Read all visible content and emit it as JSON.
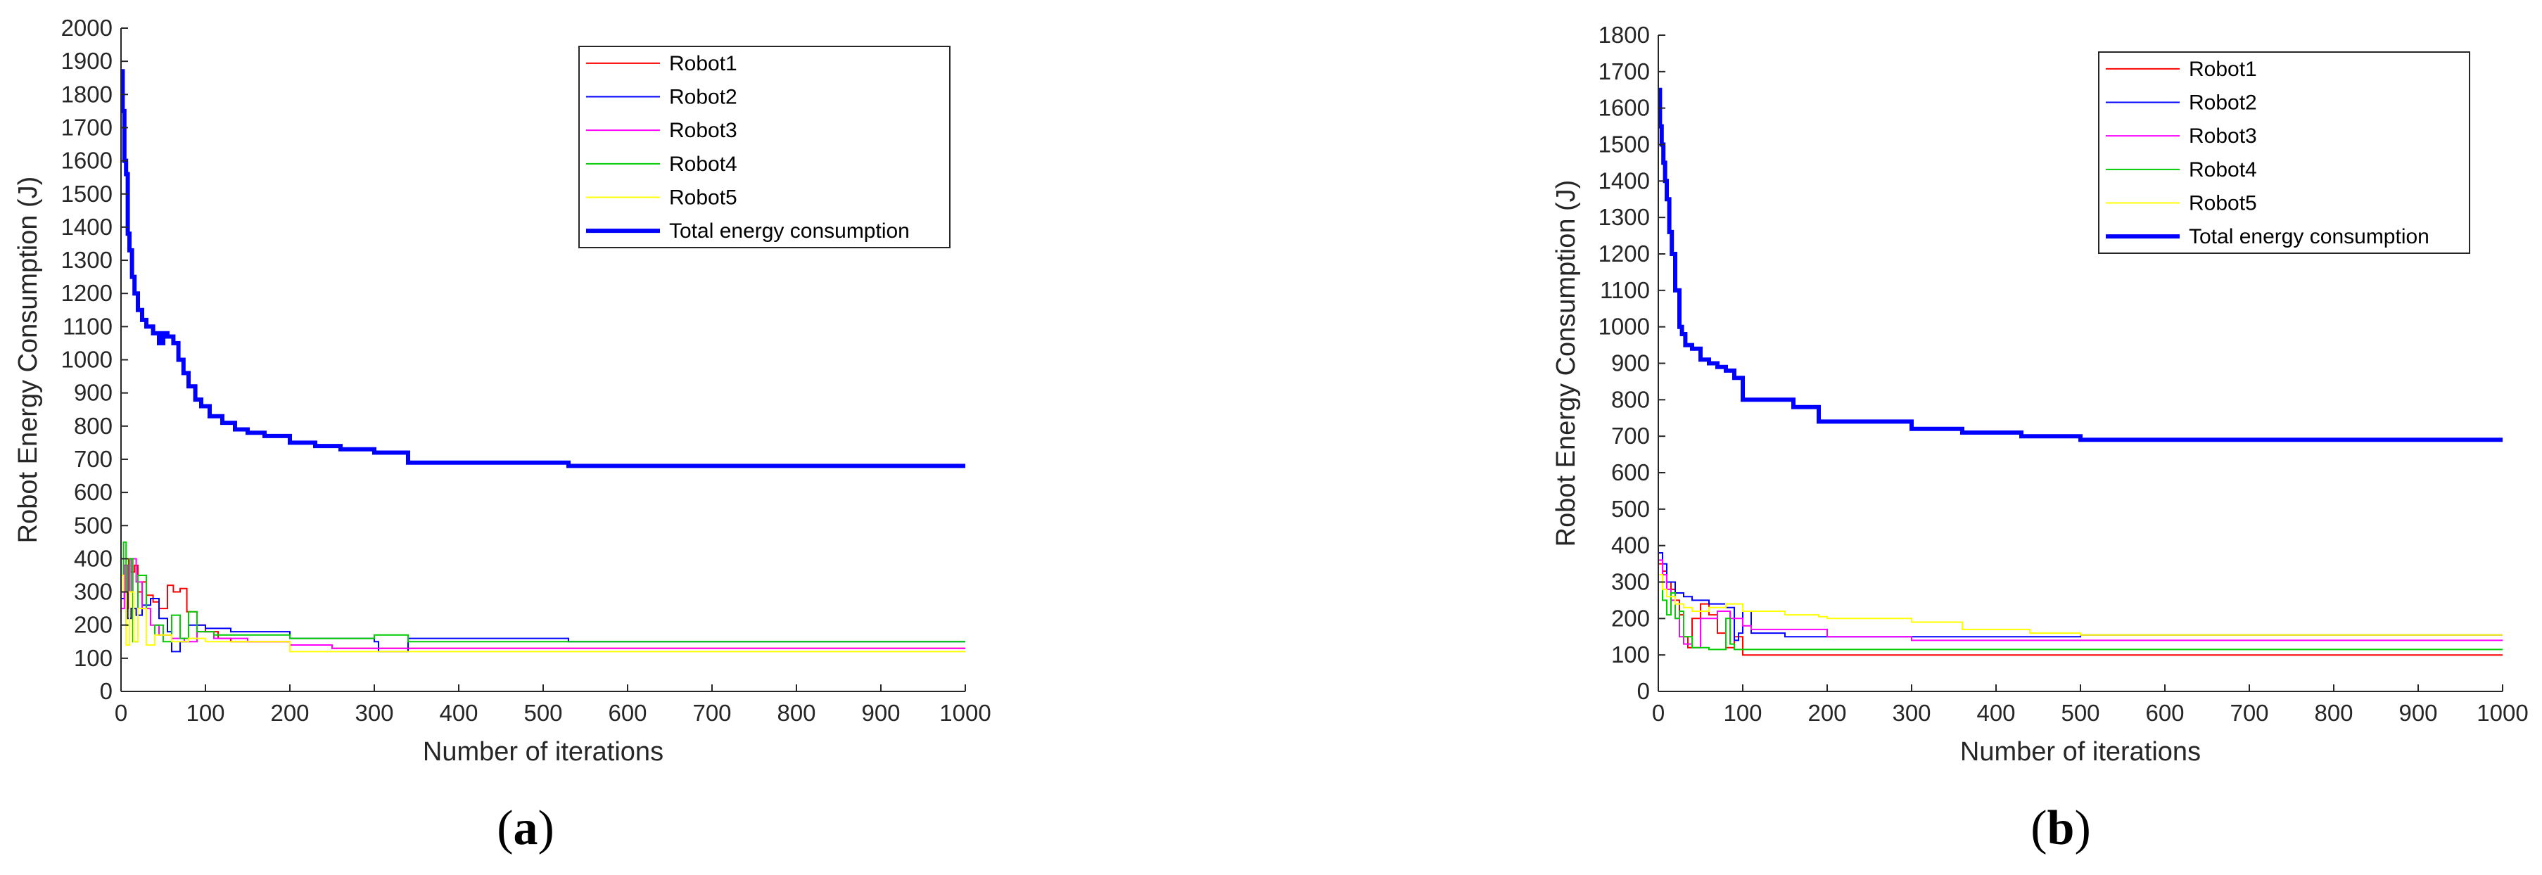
{
  "colors": {
    "robot1": "#ff0000",
    "robot2": "#0000ff",
    "robot3": "#ff00ff",
    "robot4": "#00cc00",
    "robot5": "#ffff00",
    "total": "#0000ff"
  },
  "chart_data": [
    {
      "type": "line",
      "panel_label": {
        "open": "(",
        "letter": "a",
        "close": ")"
      },
      "xlabel": "Number of iterations",
      "ylabel": "Robot Energy Consumption (J)",
      "xlim": [
        0,
        1000
      ],
      "ylim": [
        0,
        2000
      ],
      "xticks": [
        0,
        100,
        200,
        300,
        400,
        500,
        600,
        700,
        800,
        900,
        1000
      ],
      "yticks": [
        0,
        100,
        200,
        300,
        400,
        500,
        600,
        700,
        800,
        900,
        1000,
        1100,
        1200,
        1300,
        1400,
        1500,
        1600,
        1700,
        1800,
        1900,
        2000
      ],
      "grid": false,
      "legend_position": "top-right",
      "series": [
        {
          "name": "Robot1",
          "color_key": "robot1",
          "width": 2,
          "x": [
            0,
            3,
            6,
            9,
            12,
            16,
            20,
            25,
            30,
            38,
            45,
            55,
            62,
            70,
            78,
            90,
            100,
            115,
            130,
            200,
            250,
            300,
            330,
            530,
            1000
          ],
          "y": [
            300,
            380,
            250,
            400,
            360,
            380,
            300,
            330,
            290,
            270,
            250,
            320,
            300,
            310,
            240,
            200,
            180,
            160,
            150,
            140,
            130,
            130,
            130,
            130,
            130
          ]
        },
        {
          "name": "Robot2",
          "color_key": "robot2",
          "width": 2,
          "x": [
            0,
            4,
            8,
            12,
            18,
            25,
            35,
            45,
            55,
            60,
            70,
            80,
            100,
            130,
            200,
            300,
            305,
            340,
            530,
            1000
          ],
          "y": [
            280,
            300,
            220,
            250,
            230,
            260,
            280,
            220,
            180,
            120,
            150,
            200,
            190,
            180,
            160,
            150,
            120,
            160,
            150,
            150
          ]
        },
        {
          "name": "Robot3",
          "color_key": "robot3",
          "width": 2,
          "x": [
            0,
            4,
            8,
            12,
            18,
            25,
            35,
            45,
            60,
            75,
            90,
            110,
            150,
            200,
            250,
            340,
            530,
            1000
          ],
          "y": [
            250,
            380,
            300,
            400,
            330,
            250,
            200,
            170,
            160,
            150,
            180,
            160,
            150,
            140,
            130,
            130,
            130,
            130
          ]
        },
        {
          "name": "Robot4",
          "color_key": "robot4",
          "width": 2,
          "x": [
            0,
            3,
            6,
            10,
            14,
            20,
            30,
            40,
            50,
            60,
            70,
            80,
            90,
            110,
            150,
            200,
            250,
            300,
            340,
            530,
            1000
          ],
          "y": [
            300,
            450,
            200,
            400,
            150,
            350,
            140,
            200,
            150,
            230,
            160,
            240,
            180,
            170,
            170,
            160,
            160,
            170,
            150,
            150,
            150
          ]
        },
        {
          "name": "Robot5",
          "color_key": "robot5",
          "width": 2,
          "x": [
            0,
            3,
            6,
            10,
            15,
            20,
            30,
            40,
            60,
            80,
            100,
            150,
            195,
            200,
            300,
            1000
          ],
          "y": [
            350,
            300,
            140,
            300,
            150,
            250,
            140,
            170,
            150,
            160,
            150,
            150,
            150,
            120,
            120,
            120
          ]
        },
        {
          "name": "Total energy consumption",
          "color_key": "total",
          "width": 6,
          "x": [
            0,
            2,
            4,
            6,
            8,
            10,
            13,
            16,
            20,
            25,
            30,
            38,
            45,
            50,
            55,
            62,
            68,
            74,
            80,
            88,
            95,
            105,
            120,
            135,
            150,
            170,
            200,
            230,
            260,
            300,
            340,
            530,
            1000
          ],
          "y": [
            1870,
            1750,
            1600,
            1560,
            1380,
            1330,
            1250,
            1200,
            1150,
            1120,
            1100,
            1080,
            1050,
            1080,
            1070,
            1050,
            1000,
            960,
            920,
            880,
            860,
            830,
            810,
            790,
            780,
            770,
            750,
            740,
            730,
            720,
            690,
            680,
            680
          ]
        }
      ]
    },
    {
      "type": "line",
      "panel_label": {
        "open": "(",
        "letter": "b",
        "close": ")"
      },
      "xlabel": "Number of iterations",
      "ylabel": "Robot Energy Consumption (J)",
      "xlim": [
        0,
        1000
      ],
      "ylim": [
        0,
        1800
      ],
      "xticks": [
        0,
        100,
        200,
        300,
        400,
        500,
        600,
        700,
        800,
        900,
        1000
      ],
      "yticks": [
        0,
        100,
        200,
        300,
        400,
        500,
        600,
        700,
        800,
        900,
        1000,
        1100,
        1200,
        1300,
        1400,
        1500,
        1600,
        1700,
        1800
      ],
      "grid": false,
      "legend_position": "top-right",
      "series": [
        {
          "name": "Robot1",
          "color_key": "robot1",
          "width": 2,
          "x": [
            0,
            5,
            10,
            15,
            20,
            25,
            30,
            35,
            40,
            50,
            60,
            70,
            80,
            90,
            100,
            105,
            1000
          ],
          "y": [
            350,
            330,
            300,
            280,
            250,
            210,
            150,
            120,
            200,
            240,
            210,
            160,
            120,
            150,
            100,
            100,
            100
          ]
        },
        {
          "name": "Robot2",
          "color_key": "robot2",
          "width": 2,
          "x": [
            0,
            5,
            10,
            20,
            30,
            40,
            60,
            80,
            90,
            95,
            100,
            110,
            150,
            200,
            300,
            400,
            500,
            1000
          ],
          "y": [
            380,
            350,
            300,
            270,
            260,
            250,
            240,
            230,
            140,
            160,
            220,
            160,
            150,
            150,
            150,
            150,
            155,
            155
          ]
        },
        {
          "name": "Robot3",
          "color_key": "robot3",
          "width": 2,
          "x": [
            0,
            5,
            10,
            15,
            20,
            25,
            30,
            40,
            50,
            70,
            85,
            100,
            110,
            200,
            300,
            1000
          ],
          "y": [
            360,
            320,
            280,
            250,
            200,
            150,
            130,
            120,
            200,
            220,
            200,
            180,
            170,
            150,
            140,
            140
          ]
        },
        {
          "name": "Robot4",
          "color_key": "robot4",
          "width": 2,
          "x": [
            0,
            5,
            10,
            15,
            20,
            25,
            30,
            40,
            60,
            75,
            80,
            85,
            90,
            100,
            1000
          ],
          "y": [
            300,
            250,
            210,
            270,
            200,
            220,
            150,
            120,
            115,
            115,
            200,
            130,
            115,
            115,
            115
          ]
        },
        {
          "name": "Robot5",
          "color_key": "robot5",
          "width": 2,
          "x": [
            0,
            5,
            10,
            20,
            30,
            40,
            60,
            80,
            100,
            150,
            190,
            200,
            300,
            360,
            440,
            500,
            1000
          ],
          "y": [
            320,
            280,
            260,
            240,
            230,
            220,
            230,
            240,
            220,
            210,
            205,
            200,
            190,
            170,
            160,
            155,
            155
          ]
        },
        {
          "name": "Total energy consumption",
          "color_key": "total",
          "width": 6,
          "x": [
            0,
            2,
            4,
            6,
            8,
            10,
            13,
            16,
            20,
            25,
            28,
            32,
            40,
            50,
            60,
            70,
            80,
            90,
            100,
            120,
            160,
            190,
            240,
            300,
            360,
            430,
            500,
            1000
          ],
          "y": [
            1650,
            1550,
            1500,
            1450,
            1400,
            1350,
            1260,
            1200,
            1100,
            1000,
            980,
            950,
            940,
            910,
            900,
            890,
            880,
            860,
            800,
            800,
            780,
            740,
            740,
            720,
            710,
            700,
            690,
            690
          ]
        }
      ]
    }
  ]
}
